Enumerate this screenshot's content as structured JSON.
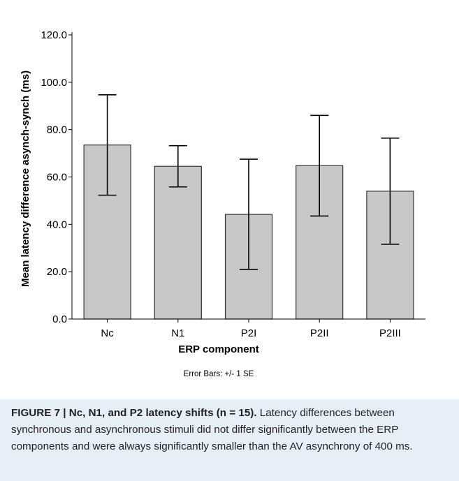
{
  "chart_data": {
    "type": "bar",
    "categories": [
      "Nc",
      "N1",
      "P2I",
      "P2II",
      "P2III"
    ],
    "values": [
      73.5,
      64.5,
      44.2,
      64.8,
      54.0
    ],
    "error_bars": {
      "lower": [
        52.3,
        55.8,
        21.0,
        43.5,
        31.6
      ],
      "upper": [
        94.7,
        73.2,
        67.5,
        86.0,
        76.4
      ]
    },
    "title": "",
    "xlabel": "ERP component",
    "ylabel": "Mean latency difference asynch-synch (ms)",
    "ylim": [
      0,
      120
    ],
    "yticks": [
      "0.0",
      "20.0",
      "40.0",
      "60.0",
      "80.0",
      "100.0",
      "120.0"
    ],
    "note": "Error Bars: +/- 1 SE",
    "grid": false,
    "colors": {
      "bar_fill": "#c8c8c8",
      "bar_stroke": "#333333"
    }
  },
  "caption": {
    "label": "FIGURE 7 | Nc, N1, and P2 latency shifts (n = 15).",
    "text": " Latency differences between synchronous and asynchronous stimuli did not differ significantly between the ERP components and were always significantly smaller than the AV asynchrony of 400 ms."
  }
}
